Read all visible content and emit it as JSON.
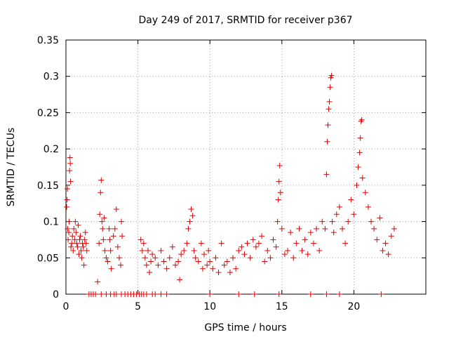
{
  "chart_data": {
    "type": "scatter",
    "title": "Day 249 of 2017, SRMTID for receiver p367",
    "xlabel": "GPS time / hours",
    "ylabel": "SRMTID / TECUs",
    "xlim": [
      0,
      25
    ],
    "ylim": [
      0,
      0.35
    ],
    "xticks": [
      0,
      5,
      10,
      15,
      20
    ],
    "xtick_labels": [
      "0",
      "5",
      "10",
      "15",
      "20"
    ],
    "yticks": [
      0,
      0.05,
      0.1,
      0.15,
      0.2,
      0.25,
      0.3,
      0.35
    ],
    "ytick_labels": [
      "0",
      "0.05",
      "0.1",
      "0.15",
      "0.2",
      "0.25",
      "0.3",
      "0.35"
    ],
    "grid": true,
    "marker": "+",
    "color": "#dd0000",
    "series": [
      {
        "name": "SRMTID",
        "points": [
          [
            0.05,
            0.12
          ],
          [
            0.08,
            0.13
          ],
          [
            0.1,
            0.145
          ],
          [
            0.12,
            0.09
          ],
          [
            0.15,
            0.075
          ],
          [
            0.2,
            0.085
          ],
          [
            0.22,
            0.1
          ],
          [
            0.25,
            0.17
          ],
          [
            0.28,
            0.188
          ],
          [
            0.3,
            0.18
          ],
          [
            0.32,
            0.155
          ],
          [
            0.35,
            0.065
          ],
          [
            0.4,
            0.07
          ],
          [
            0.45,
            0.08
          ],
          [
            0.5,
            0.06
          ],
          [
            0.55,
            0.09
          ],
          [
            0.6,
            0.075
          ],
          [
            0.65,
            0.1
          ],
          [
            0.7,
            0.085
          ],
          [
            0.75,
            0.07
          ],
          [
            0.8,
            0.065
          ],
          [
            0.85,
            0.095
          ],
          [
            0.9,
            0.055
          ],
          [
            0.95,
            0.075
          ],
          [
            1.0,
            0.08
          ],
          [
            1.05,
            0.06
          ],
          [
            1.1,
            0.05
          ],
          [
            1.15,
            0.07
          ],
          [
            1.2,
            0.065
          ],
          [
            1.25,
            0.04
          ],
          [
            1.3,
            0.075
          ],
          [
            1.35,
            0.085
          ],
          [
            1.4,
            0.07
          ],
          [
            1.45,
            0.06
          ],
          [
            2.2,
            0.017
          ],
          [
            2.3,
            0.07
          ],
          [
            2.35,
            0.11
          ],
          [
            2.4,
            0.14
          ],
          [
            2.45,
            0.157
          ],
          [
            2.5,
            0.1
          ],
          [
            2.55,
            0.09
          ],
          [
            2.6,
            0.075
          ],
          [
            2.65,
            0.105
          ],
          [
            2.7,
            0.06
          ],
          [
            2.8,
            0.05
          ],
          [
            2.9,
            0.045
          ],
          [
            3.0,
            0.09
          ],
          [
            3.05,
            0.075
          ],
          [
            3.1,
            0.06
          ],
          [
            3.15,
            0.035
          ],
          [
            3.3,
            0.08
          ],
          [
            3.4,
            0.09
          ],
          [
            3.5,
            0.117
          ],
          [
            3.6,
            0.065
          ],
          [
            3.7,
            0.05
          ],
          [
            3.8,
            0.04
          ],
          [
            3.85,
            0.1
          ],
          [
            3.9,
            0.08
          ],
          [
            5.2,
            0.075
          ],
          [
            5.3,
            0.06
          ],
          [
            5.4,
            0.07
          ],
          [
            5.5,
            0.05
          ],
          [
            5.6,
            0.04
          ],
          [
            5.7,
            0.06
          ],
          [
            5.8,
            0.03
          ],
          [
            5.9,
            0.045
          ],
          [
            6.0,
            0.055
          ],
          [
            6.2,
            0.05
          ],
          [
            6.4,
            0.04
          ],
          [
            6.6,
            0.06
          ],
          [
            6.8,
            0.045
          ],
          [
            7.0,
            0.035
          ],
          [
            7.2,
            0.05
          ],
          [
            7.4,
            0.065
          ],
          [
            7.6,
            0.04
          ],
          [
            7.8,
            0.045
          ],
          [
            7.9,
            0.02
          ],
          [
            8.0,
            0.055
          ],
          [
            8.2,
            0.06
          ],
          [
            8.4,
            0.07
          ],
          [
            8.5,
            0.09
          ],
          [
            8.6,
            0.1
          ],
          [
            8.7,
            0.117
          ],
          [
            8.8,
            0.108
          ],
          [
            8.9,
            0.06
          ],
          [
            9.0,
            0.05
          ],
          [
            9.2,
            0.045
          ],
          [
            9.4,
            0.07
          ],
          [
            9.5,
            0.035
          ],
          [
            9.6,
            0.055
          ],
          [
            9.8,
            0.04
          ],
          [
            9.9,
            0.06
          ],
          [
            10.0,
            0.045
          ],
          [
            10.2,
            0.035
          ],
          [
            10.4,
            0.05
          ],
          [
            10.6,
            0.03
          ],
          [
            10.8,
            0.07
          ],
          [
            11.0,
            0.04
          ],
          [
            11.2,
            0.045
          ],
          [
            11.4,
            0.03
          ],
          [
            11.6,
            0.05
          ],
          [
            11.8,
            0.035
          ],
          [
            12.0,
            0.06
          ],
          [
            12.2,
            0.065
          ],
          [
            12.4,
            0.055
          ],
          [
            12.6,
            0.07
          ],
          [
            12.8,
            0.05
          ],
          [
            13.0,
            0.075
          ],
          [
            13.2,
            0.065
          ],
          [
            13.4,
            0.07
          ],
          [
            13.6,
            0.08
          ],
          [
            13.8,
            0.045
          ],
          [
            14.0,
            0.06
          ],
          [
            14.2,
            0.05
          ],
          [
            14.4,
            0.075
          ],
          [
            14.6,
            0.065
          ],
          [
            14.7,
            0.1
          ],
          [
            14.75,
            0.13
          ],
          [
            14.8,
            0.155
          ],
          [
            14.85,
            0.177
          ],
          [
            14.9,
            0.14
          ],
          [
            15.0,
            0.09
          ],
          [
            15.2,
            0.055
          ],
          [
            15.4,
            0.06
          ],
          [
            15.6,
            0.085
          ],
          [
            15.8,
            0.05
          ],
          [
            16.0,
            0.07
          ],
          [
            16.2,
            0.09
          ],
          [
            16.4,
            0.06
          ],
          [
            16.6,
            0.075
          ],
          [
            16.8,
            0.055
          ],
          [
            17.0,
            0.085
          ],
          [
            17.2,
            0.07
          ],
          [
            17.4,
            0.09
          ],
          [
            17.6,
            0.06
          ],
          [
            17.8,
            0.1
          ],
          [
            18.0,
            0.09
          ],
          [
            18.1,
            0.165
          ],
          [
            18.15,
            0.21
          ],
          [
            18.2,
            0.233
          ],
          [
            18.25,
            0.255
          ],
          [
            18.3,
            0.265
          ],
          [
            18.35,
            0.285
          ],
          [
            18.4,
            0.298
          ],
          [
            18.45,
            0.301
          ],
          [
            18.5,
            0.1
          ],
          [
            18.6,
            0.085
          ],
          [
            18.8,
            0.11
          ],
          [
            19.0,
            0.12
          ],
          [
            19.2,
            0.09
          ],
          [
            19.4,
            0.07
          ],
          [
            19.6,
            0.1
          ],
          [
            19.8,
            0.13
          ],
          [
            20.0,
            0.11
          ],
          [
            20.2,
            0.15
          ],
          [
            20.3,
            0.175
          ],
          [
            20.4,
            0.195
          ],
          [
            20.45,
            0.215
          ],
          [
            20.5,
            0.238
          ],
          [
            20.55,
            0.24
          ],
          [
            20.6,
            0.16
          ],
          [
            20.8,
            0.14
          ],
          [
            21.0,
            0.12
          ],
          [
            21.2,
            0.1
          ],
          [
            21.4,
            0.09
          ],
          [
            21.6,
            0.075
          ],
          [
            21.8,
            0.105
          ],
          [
            22.0,
            0.06
          ],
          [
            22.2,
            0.07
          ],
          [
            22.4,
            0.055
          ],
          [
            22.6,
            0.08
          ],
          [
            22.8,
            0.09
          ],
          [
            1.6,
            0
          ],
          [
            1.75,
            0
          ],
          [
            1.9,
            0
          ],
          [
            2.05,
            0
          ],
          [
            2.45,
            0
          ],
          [
            2.8,
            0
          ],
          [
            3.1,
            0
          ],
          [
            3.35,
            0
          ],
          [
            3.5,
            0
          ],
          [
            3.85,
            0
          ],
          [
            4.1,
            0
          ],
          [
            4.3,
            0
          ],
          [
            4.5,
            0
          ],
          [
            4.7,
            0
          ],
          [
            4.9,
            0
          ],
          [
            5.1,
            0
          ],
          [
            5.25,
            0
          ],
          [
            5.4,
            0
          ],
          [
            5.6,
            0
          ],
          [
            6.0,
            0
          ],
          [
            6.2,
            0
          ],
          [
            6.6,
            0
          ],
          [
            7.0,
            0
          ],
          [
            10.0,
            0
          ],
          [
            12.0,
            0
          ],
          [
            13.1,
            0
          ],
          [
            14.8,
            0
          ],
          [
            17.0,
            0
          ],
          [
            18.1,
            0
          ],
          [
            19.0,
            0
          ],
          [
            21.9,
            0
          ]
        ]
      }
    ]
  }
}
